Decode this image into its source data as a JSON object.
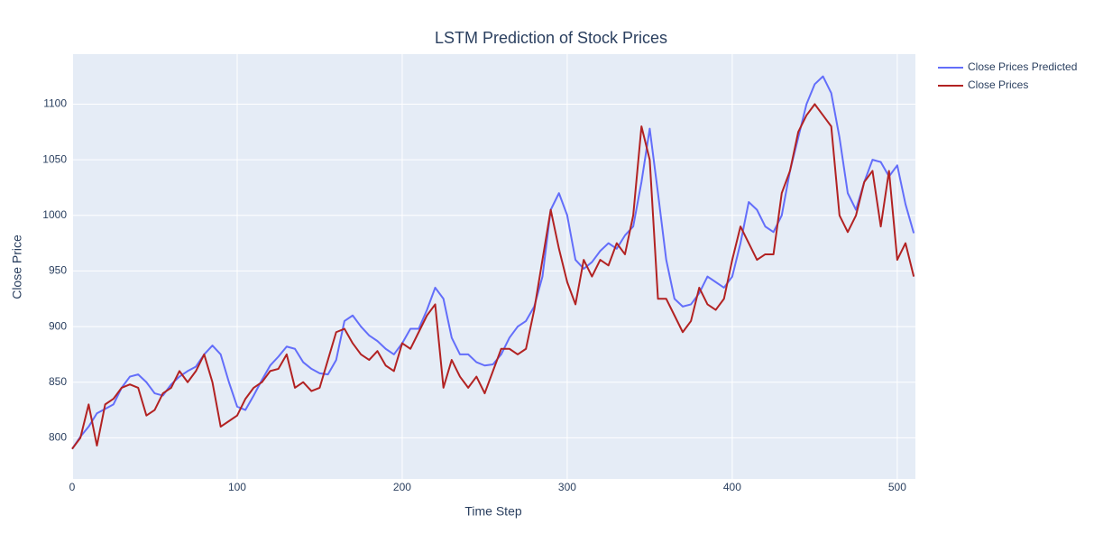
{
  "chart_data": {
    "type": "line",
    "title": "LSTM Prediction of Stock Prices",
    "x_label": "Time Step",
    "y_label": "Close Price",
    "x": [
      0,
      5,
      10,
      15,
      20,
      25,
      30,
      35,
      40,
      45,
      50,
      55,
      60,
      65,
      70,
      75,
      80,
      85,
      90,
      95,
      100,
      105,
      110,
      115,
      120,
      125,
      130,
      135,
      140,
      145,
      150,
      155,
      160,
      165,
      170,
      175,
      180,
      185,
      190,
      195,
      200,
      205,
      210,
      215,
      220,
      225,
      230,
      235,
      240,
      245,
      250,
      255,
      260,
      265,
      270,
      275,
      280,
      285,
      290,
      295,
      300,
      305,
      310,
      315,
      320,
      325,
      330,
      335,
      340,
      345,
      350,
      355,
      360,
      365,
      370,
      375,
      380,
      385,
      390,
      395,
      400,
      405,
      410,
      415,
      420,
      425,
      430,
      435,
      440,
      445,
      450,
      455,
      460,
      465,
      470,
      475,
      480,
      485,
      490,
      495,
      500,
      505,
      510
    ],
    "series": [
      {
        "name": "Close Prices Predicted",
        "color": "#636efa",
        "values": [
          790,
          801,
          810,
          822,
          826,
          830,
          845,
          855,
          857,
          850,
          840,
          838,
          848,
          855,
          860,
          864,
          875,
          883,
          875,
          850,
          828,
          825,
          838,
          852,
          865,
          873,
          882,
          880,
          868,
          862,
          858,
          857,
          870,
          905,
          910,
          900,
          892,
          887,
          880,
          875,
          885,
          898,
          898,
          915,
          935,
          925,
          890,
          875,
          875,
          868,
          865,
          866,
          875,
          890,
          900,
          905,
          918,
          945,
          1005,
          1020,
          1000,
          960,
          952,
          958,
          968,
          975,
          970,
          982,
          990,
          1030,
          1078,
          1020,
          960,
          925,
          918,
          920,
          930,
          945,
          940,
          935,
          945,
          975,
          1012,
          1005,
          990,
          985,
          1000,
          1040,
          1070,
          1100,
          1118,
          1125,
          1110,
          1070,
          1020,
          1005,
          1030,
          1050,
          1048,
          1035,
          1045,
          1010,
          984
        ]
      },
      {
        "name": "Close Prices",
        "color": "#b22222",
        "values": [
          790,
          800,
          830,
          793,
          830,
          835,
          845,
          848,
          845,
          820,
          825,
          840,
          845,
          860,
          850,
          860,
          875,
          850,
          810,
          815,
          820,
          835,
          845,
          850,
          860,
          862,
          875,
          845,
          850,
          842,
          845,
          870,
          895,
          898,
          885,
          875,
          870,
          878,
          865,
          860,
          885,
          880,
          895,
          910,
          920,
          845,
          870,
          855,
          845,
          855,
          840,
          860,
          880,
          880,
          875,
          880,
          915,
          960,
          1005,
          970,
          940,
          920,
          960,
          945,
          960,
          955,
          975,
          965,
          1000,
          1080,
          1050,
          925,
          925,
          910,
          895,
          905,
          935,
          920,
          915,
          925,
          960,
          990,
          975,
          960,
          965,
          965,
          1020,
          1040,
          1075,
          1090,
          1100,
          1090,
          1080,
          1000,
          985,
          1000,
          1030,
          1040,
          990,
          1040,
          960,
          975,
          945
        ]
      }
    ],
    "xlim": [
      0,
      511
    ],
    "ylim": [
      763,
      1145
    ],
    "xticks": [
      0,
      100,
      200,
      300,
      400,
      500
    ],
    "yticks": [
      800,
      850,
      900,
      950,
      1000,
      1050,
      1100
    ],
    "grid": true
  }
}
